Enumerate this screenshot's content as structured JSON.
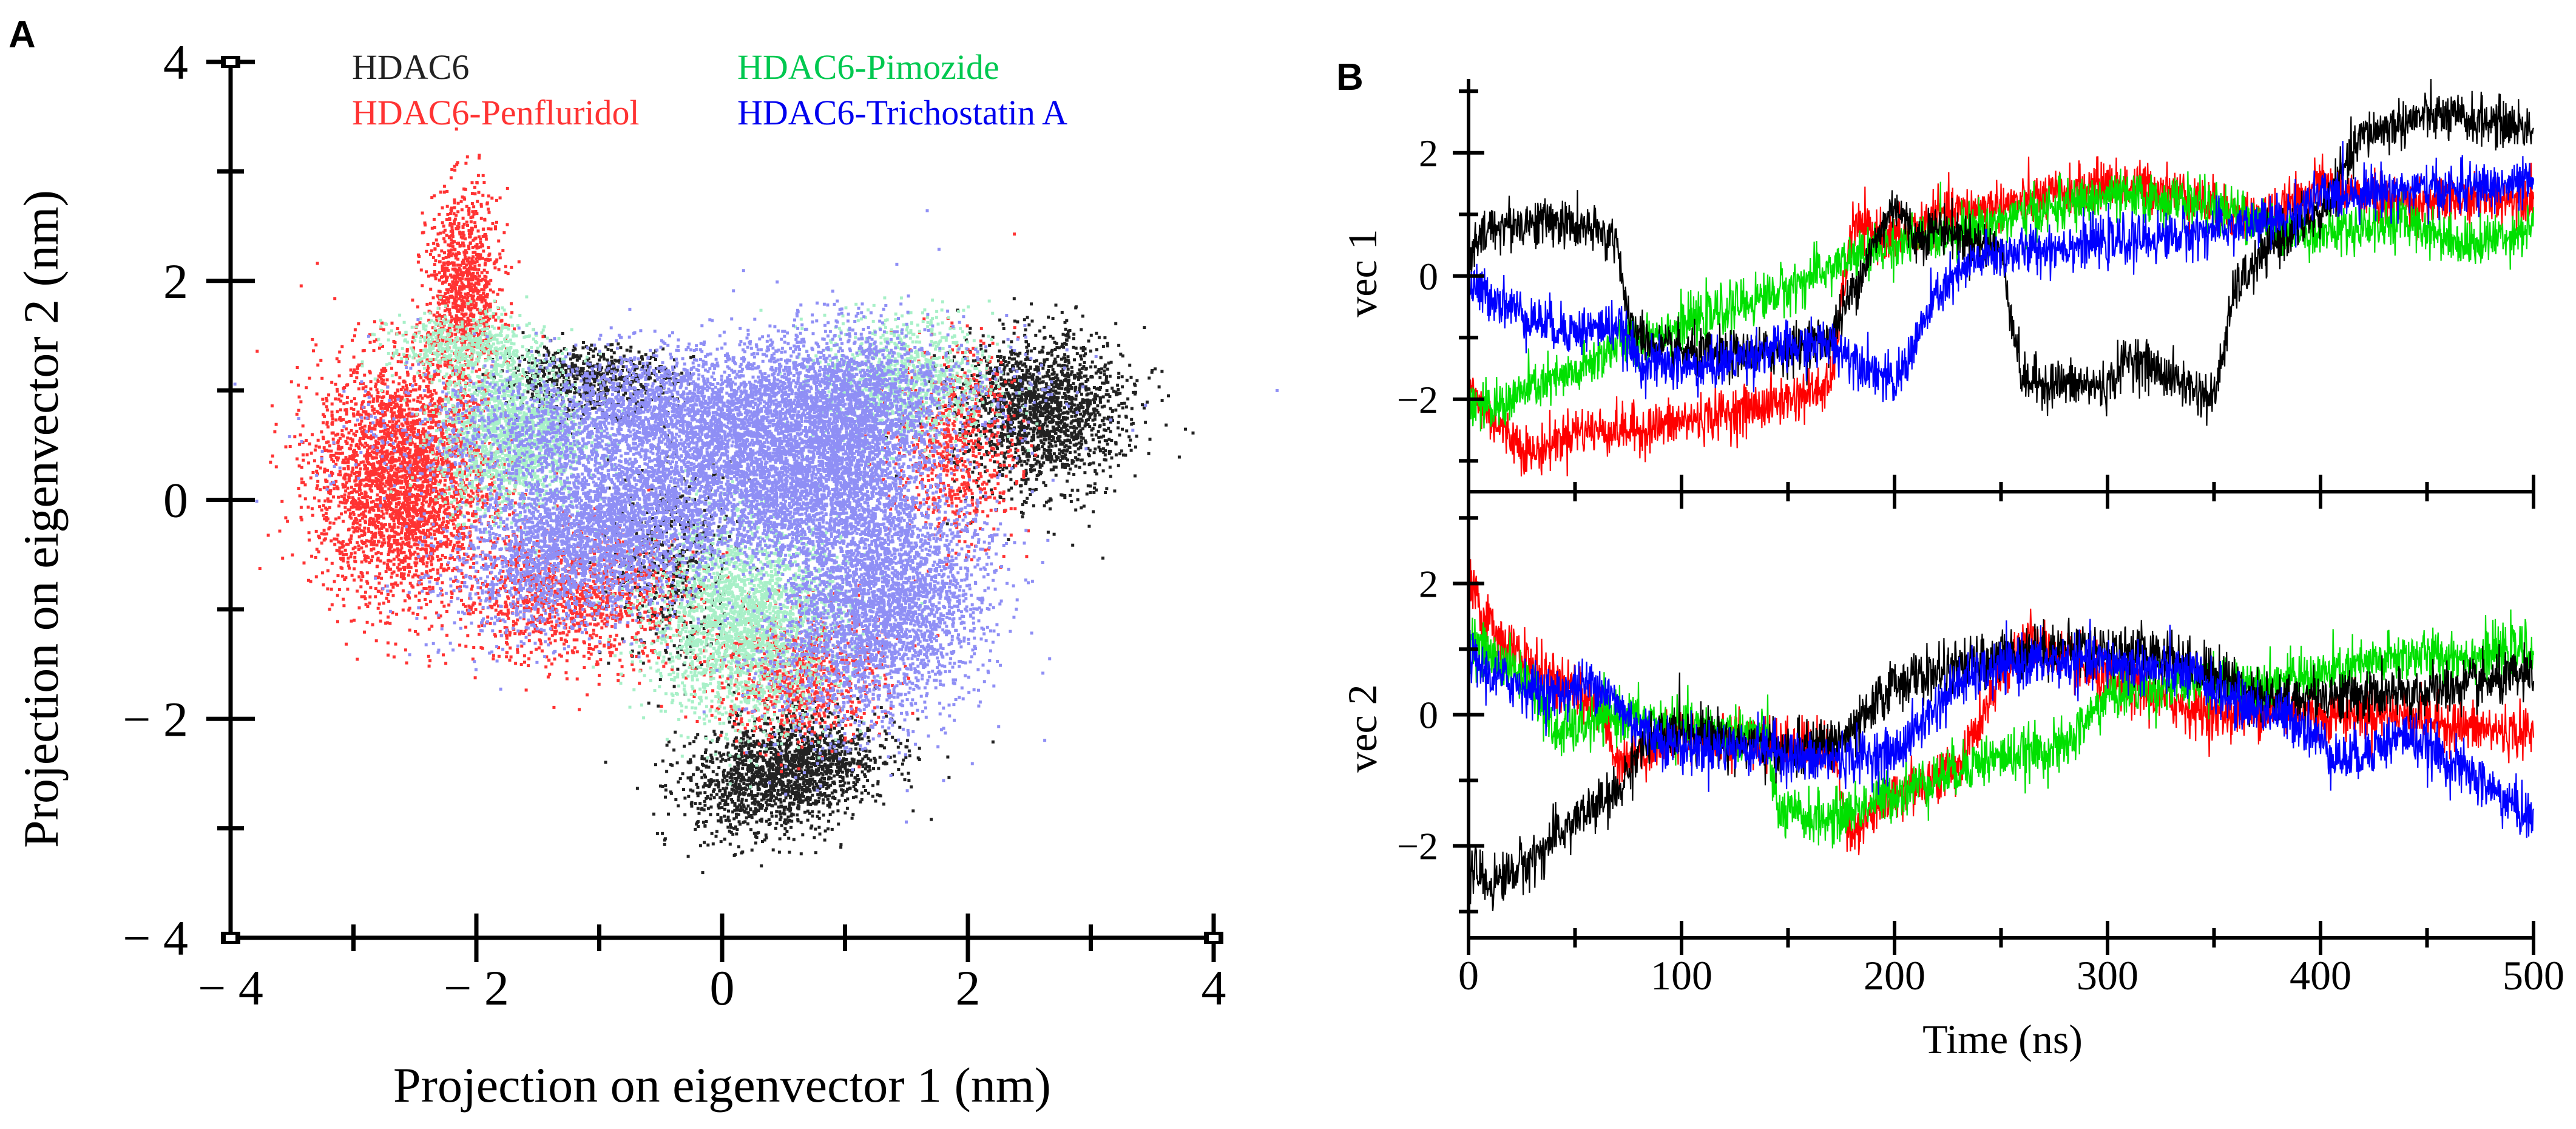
{
  "panel_labels": {
    "a": "A",
    "b": "B"
  },
  "colors": {
    "HDAC6": "#222222",
    "HDAC6-Penfluridol": "#ff3333",
    "HDAC6-Pimozide": "#00c850",
    "HDAC6-Pimozide_scatter": "#a8f0c8",
    "HDAC6-Trichostatin A": "#0000ee",
    "HDAC6-Trichostatin A_scatter": "#8f8ff5",
    "HDAC6-Penfluridol_line": "#ff0000",
    "HDAC6-Pimozide_line": "#00e000",
    "HDAC6-Trichostatin A_line": "#0000ff",
    "HDAC6_line": "#000000"
  },
  "chart_data": [
    {
      "type": "scatter",
      "xlabel": "Projection on eigenvector 1 (nm)",
      "ylabel": "Projection on eigenvector 2 (nm)",
      "xlim": [
        -4,
        4
      ],
      "ylim": [
        -4,
        4
      ],
      "x_ticks": [
        "− 4",
        "− 2",
        "0",
        "2",
        "4"
      ],
      "y_ticks": [
        "− 4",
        "− 2",
        "0",
        "2",
        "4"
      ],
      "grid": false,
      "legend_position": "top",
      "series": [
        {
          "name": "HDAC6",
          "clusters": [
            {
              "cx": 2.6,
              "cy": 0.8,
              "sx": 0.35,
              "sy": 0.35,
              "n": 1800,
              "rot": 0.5
            },
            {
              "cx": 0.5,
              "cy": -2.5,
              "sx": 0.4,
              "sy": 0.25,
              "n": 1800,
              "rot": 0.3
            },
            {
              "cx": -1.1,
              "cy": 1.1,
              "sx": 0.35,
              "sy": 0.15,
              "n": 700,
              "rot": 0
            },
            {
              "cx": -0.4,
              "cy": -0.6,
              "sx": 0.25,
              "sy": 0.45,
              "n": 500,
              "rot": 0
            }
          ]
        },
        {
          "name": "HDAC6-Penfluridol",
          "clusters": [
            {
              "cx": -2.6,
              "cy": 0.2,
              "sx": 0.35,
              "sy": 0.55,
              "n": 3200,
              "rot": 0
            },
            {
              "cx": -2.1,
              "cy": 1.9,
              "sx": 0.15,
              "sy": 0.45,
              "n": 1000,
              "rot": 0
            },
            {
              "cx": -1.2,
              "cy": -0.9,
              "sx": 0.5,
              "sy": 0.3,
              "n": 1200,
              "rot": 0
            },
            {
              "cx": 0.6,
              "cy": -1.6,
              "sx": 0.35,
              "sy": 0.3,
              "n": 900,
              "rot": 0
            },
            {
              "cx": 1.9,
              "cy": 0.5,
              "sx": 0.25,
              "sy": 0.45,
              "n": 700,
              "rot": 0
            }
          ]
        },
        {
          "name": "HDAC6-Pimozide",
          "clusters": [
            {
              "cx": -1.7,
              "cy": 0.6,
              "sx": 0.3,
              "sy": 0.35,
              "n": 1800,
              "rot": 0
            },
            {
              "cx": -2.1,
              "cy": 1.4,
              "sx": 0.3,
              "sy": 0.15,
              "n": 500,
              "rot": 0
            },
            {
              "cx": 0.2,
              "cy": -1.1,
              "sx": 0.4,
              "sy": 0.45,
              "n": 2600,
              "rot": 0
            },
            {
              "cx": 1.5,
              "cy": 1.1,
              "sx": 0.35,
              "sy": 0.3,
              "n": 1000,
              "rot": 0
            }
          ]
        },
        {
          "name": "HDAC6-Trichostatin A",
          "clusters": [
            {
              "cx": -1.0,
              "cy": -0.3,
              "sx": 0.6,
              "sy": 0.35,
              "n": 3600,
              "rot": 0.45
            },
            {
              "cx": -0.2,
              "cy": 0.8,
              "sx": 1.1,
              "sy": 0.3,
              "n": 4200,
              "rot": 0.1
            },
            {
              "cx": 1.0,
              "cy": 0.5,
              "sx": 0.35,
              "sy": 0.5,
              "n": 2400,
              "rot": 0
            },
            {
              "cx": 1.3,
              "cy": -1.0,
              "sx": 0.4,
              "sy": 0.55,
              "n": 3200,
              "rot": -0.45
            },
            {
              "cx": 0.4,
              "cy": 0.1,
              "sx": 0.5,
              "sy": 0.35,
              "n": 2000,
              "rot": -0.5
            }
          ]
        }
      ]
    },
    {
      "type": "line",
      "xlabel": "Time (ns)",
      "xlim": [
        0,
        500
      ],
      "x_ticks": [
        "0",
        "100",
        "200",
        "300",
        "400",
        "500"
      ],
      "panels": [
        {
          "ylabel": "vec 1",
          "ylim": [
            -3.5,
            3.2
          ],
          "y_ticks": [
            "−2",
            "0",
            "2"
          ],
          "series": [
            {
              "name": "HDAC6",
              "x": [
                0,
                10,
                40,
                70,
                75,
                90,
                120,
                150,
                170,
                200,
                210,
                220,
                250,
                260,
                300,
                310,
                350,
                360,
                380,
                400,
                420,
                450,
                480,
                500
              ],
              "y": [
                0.3,
                0.8,
                0.9,
                0.6,
                -0.8,
                -1.2,
                -1.3,
                -1.2,
                -1.0,
                1.2,
                0.6,
                0.8,
                0.4,
                -1.7,
                -1.8,
                -1.3,
                -2.0,
                -0.2,
                0.6,
                1.0,
                2.3,
                2.6,
                2.5,
                2.4
              ]
            },
            {
              "name": "HDAC6-Penfluridol",
              "x": [
                0,
                10,
                30,
                50,
                80,
                110,
                140,
                170,
                180,
                200,
                220,
                260,
                300,
                330,
                360,
                380,
                400,
                430,
                460,
                500
              ],
              "y": [
                -1.8,
                -2.3,
                -2.9,
                -2.5,
                -2.5,
                -2.3,
                -2.1,
                -1.8,
                0.8,
                0.6,
                1.0,
                1.2,
                1.5,
                1.4,
                1.0,
                1.0,
                1.5,
                1.2,
                1.2,
                1.3
              ]
            },
            {
              "name": "HDAC6-Pimozide",
              "x": [
                0,
                10,
                30,
                50,
                70,
                100,
                150,
                180,
                200,
                250,
                300,
                340,
                380,
                400,
                440,
                470,
                500
              ],
              "y": [
                -2.0,
                -2.2,
                -1.8,
                -1.6,
                -1.1,
                -0.8,
                -0.2,
                0.3,
                0.5,
                0.9,
                1.3,
                1.2,
                0.8,
                0.7,
                0.9,
                0.5,
                0.8
              ]
            },
            {
              "name": "HDAC6-Trichostatin A",
              "x": [
                0,
                10,
                30,
                50,
                70,
                80,
                110,
                140,
                170,
                190,
                200,
                220,
                240,
                280,
                320,
                360,
                380,
                400,
                430,
                460,
                500
              ],
              "y": [
                -0.2,
                -0.3,
                -0.7,
                -0.9,
                -0.8,
                -1.4,
                -1.5,
                -1.2,
                -1.1,
                -1.5,
                -1.8,
                -0.3,
                0.3,
                0.5,
                0.6,
                0.8,
                0.9,
                1.3,
                1.4,
                1.4,
                1.5
              ]
            }
          ]
        },
        {
          "ylabel": "vec 2",
          "ylim": [
            -3.4,
            3.4
          ],
          "y_ticks": [
            "−2",
            "0",
            "2"
          ],
          "series": [
            {
              "name": "HDAC6",
              "x": [
                0,
                10,
                30,
                50,
                70,
                80,
                100,
                150,
                180,
                200,
                230,
                260,
                300,
                330,
                360,
                380,
                400,
                440,
                480,
                500
              ],
              "y": [
                -2.3,
                -2.6,
                -2.2,
                -1.6,
                -1.2,
                -0.5,
                -0.2,
                -0.6,
                -0.3,
                0.5,
                0.7,
                1.0,
                1.0,
                0.9,
                0.5,
                0.2,
                0.3,
                0.3,
                0.5,
                0.6
              ]
            },
            {
              "name": "HDAC6-Penfluridol",
              "x": [
                0,
                5,
                20,
                40,
                60,
                70,
                100,
                140,
                170,
                180,
                200,
                230,
                260,
                300,
                330,
                350,
                380,
                400,
                440,
                470,
                500
              ],
              "y": [
                2.1,
                1.6,
                1.0,
                0.5,
                0.2,
                -0.7,
                -0.3,
                -0.4,
                -0.5,
                -1.8,
                -1.2,
                -0.8,
                1.2,
                0.5,
                0.2,
                0.0,
                0.1,
                0.0,
                0.0,
                -0.2,
                -0.3
              ]
            },
            {
              "name": "HDAC6-Pimozide",
              "x": [
                0,
                10,
                30,
                40,
                70,
                100,
                140,
                145,
                170,
                200,
                240,
                280,
                300,
                340,
                380,
                400,
                440,
                470,
                500
              ],
              "y": [
                1.2,
                0.9,
                0.5,
                -0.3,
                0.0,
                -0.2,
                -0.3,
                -1.5,
                -1.6,
                -1.2,
                -0.7,
                -0.5,
                0.3,
                0.5,
                0.5,
                0.6,
                0.9,
                0.9,
                1.0
              ]
            },
            {
              "name": "HDAC6-Trichostatin A",
              "x": [
                0,
                10,
                40,
                60,
                80,
                100,
                140,
                160,
                200,
                230,
                260,
                300,
                340,
                360,
                390,
                410,
                440,
                470,
                500
              ],
              "y": [
                0.9,
                0.6,
                0.3,
                0.5,
                -0.2,
                -0.5,
                -0.5,
                -0.7,
                -0.6,
                0.5,
                0.8,
                0.8,
                0.6,
                0.2,
                -0.1,
                -0.7,
                -0.3,
                -0.9,
                -1.6
              ]
            }
          ]
        }
      ]
    }
  ]
}
